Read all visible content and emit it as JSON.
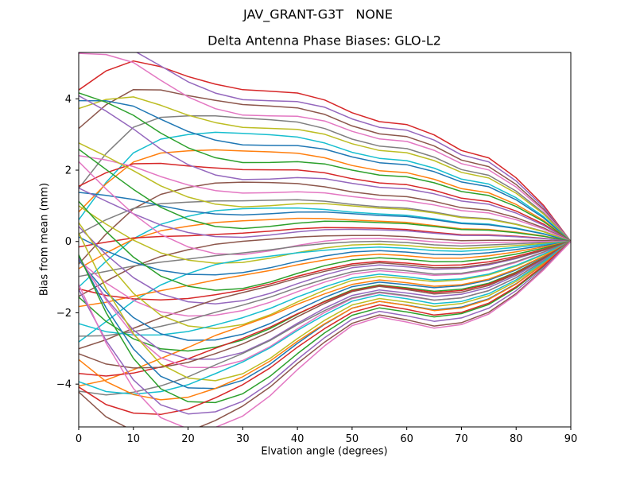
{
  "chart_data": {
    "type": "line",
    "suptitle": "JAV_GRANT-G3T   NONE",
    "title": "Delta Antenna Phase Biases: GLO-L2",
    "xlabel": "Elvation angle (degrees)",
    "ylabel": "Bias from mean (mm)",
    "xlim": [
      0,
      90
    ],
    "ylim": [
      -5.2,
      5.3
    ],
    "x_ticks": [
      0,
      10,
      20,
      30,
      40,
      50,
      60,
      70,
      80,
      90
    ],
    "y_ticks": [
      -4,
      -2,
      0,
      2,
      4
    ],
    "grid": false,
    "legend": "none",
    "series_count": 54,
    "color_cycle": [
      "#1f77b4",
      "#ff7f0e",
      "#2ca02c",
      "#d62728",
      "#9467bd",
      "#8c564b",
      "#e377c2",
      "#7f7f7f",
      "#bcbd22",
      "#17becf"
    ],
    "x": [
      0,
      5,
      10,
      15,
      20,
      25,
      30,
      35,
      40,
      45,
      50,
      55,
      60,
      65,
      70,
      75,
      80,
      85,
      90
    ],
    "series_model": "y[i] = a*basis_hump[i] + b*basis_valley[i] + c*basis_left[i]; all curves converge to 0 mm at 90 deg",
    "basis_hump": [
      1.12,
      1.22,
      1.26,
      1.2,
      1.12,
      1.06,
      1.02,
      1.01,
      1.0,
      0.955,
      0.87,
      0.81,
      0.79,
      0.72,
      0.615,
      0.565,
      0.43,
      0.245,
      0
    ],
    "basis_valley": [
      -0.64,
      -0.82,
      -0.94,
      -1.0,
      -1.0,
      -0.955,
      -0.885,
      -0.785,
      -0.66,
      -0.545,
      -0.445,
      -0.4,
      -0.425,
      -0.455,
      -0.435,
      -0.38,
      -0.28,
      -0.15,
      0
    ],
    "basis_left": [
      1.0,
      0.7,
      0.42,
      0.2,
      0.06,
      -0.03,
      -0.06,
      -0.05,
      -0.03,
      -0.01,
      0,
      0,
      0,
      0,
      0,
      0,
      0,
      0,
      0
    ],
    "series": [
      {
        "color": "#d62728",
        "a": 4.15,
        "b": 0.0,
        "c": -0.4
      },
      {
        "color": "#9467bd",
        "a": 3.95,
        "b": 0.0,
        "c": 0.9
      },
      {
        "color": "#8c564b",
        "a": 3.75,
        "b": 0.05,
        "c": -1.0
      },
      {
        "color": "#e377c2",
        "a": 3.55,
        "b": 0.0,
        "c": 1.3
      },
      {
        "color": "#7f7f7f",
        "a": 3.35,
        "b": 0.1,
        "c": -2.2
      },
      {
        "color": "#bcbd22",
        "a": 3.15,
        "b": 0.0,
        "c": 0.2
      },
      {
        "color": "#17becf",
        "a": 2.95,
        "b": 0.15,
        "c": -2.6
      },
      {
        "color": "#1f77b4",
        "a": 2.75,
        "b": 0.05,
        "c": 0.9
      },
      {
        "color": "#ff7f0e",
        "a": 2.55,
        "b": 0.2,
        "c": -1.9
      },
      {
        "color": "#2ca02c",
        "a": 2.35,
        "b": 0.1,
        "c": 1.6
      },
      {
        "color": "#d62728",
        "a": 2.15,
        "b": 0.25,
        "c": -0.7
      },
      {
        "color": "#9467bd",
        "a": 1.95,
        "b": 0.15,
        "c": 2.0
      },
      {
        "color": "#8c564b",
        "a": 1.75,
        "b": 0.3,
        "c": -2.4
      },
      {
        "color": "#e377c2",
        "a": 1.55,
        "b": 0.2,
        "c": 0.8
      },
      {
        "color": "#7f7f7f",
        "a": 1.4,
        "b": 0.4,
        "c": -1.1
      },
      {
        "color": "#bcbd22",
        "a": 1.3,
        "b": 0.3,
        "c": 1.5
      },
      {
        "color": "#17becf",
        "a": 1.2,
        "b": 0.5,
        "c": -2.3
      },
      {
        "color": "#1f77b4",
        "a": 1.1,
        "b": 0.4,
        "c": 0.4
      },
      {
        "color": "#ff7f0e",
        "a": 1.0,
        "b": 0.6,
        "c": -1.5
      },
      {
        "color": "#2ca02c",
        "a": 0.9,
        "b": 0.5,
        "c": 1.9
      },
      {
        "color": "#d62728",
        "a": 0.8,
        "b": 0.7,
        "c": -0.6
      },
      {
        "color": "#9467bd",
        "a": 0.7,
        "b": 0.6,
        "c": 1.1
      },
      {
        "color": "#8c564b",
        "a": 0.6,
        "b": 0.8,
        "c": -1.7
      },
      {
        "color": "#e377c2",
        "a": 0.55,
        "b": 0.9,
        "c": 2.2
      },
      {
        "color": "#7f7f7f",
        "a": 0.5,
        "b": 1.0,
        "c": -0.9
      },
      {
        "color": "#bcbd22",
        "a": 0.45,
        "b": 1.1,
        "c": 1.2
      },
      {
        "color": "#17becf",
        "a": 0.4,
        "b": 1.2,
        "c": -2.5
      },
      {
        "color": "#1f77b4",
        "a": 0.35,
        "b": 1.35,
        "c": 0.6
      },
      {
        "color": "#ff7f0e",
        "a": 0.3,
        "b": 1.5,
        "c": -1.2
      },
      {
        "color": "#2ca02c",
        "a": 0.25,
        "b": 1.65,
        "c": 1.9
      },
      {
        "color": "#d62728",
        "a": 0.2,
        "b": 1.8,
        "c": -0.4
      },
      {
        "color": "#9467bd",
        "a": 0.15,
        "b": 1.95,
        "c": 1.5
      },
      {
        "color": "#8c564b",
        "a": 0.3,
        "b": 2.1,
        "c": -2.0
      },
      {
        "color": "#e377c2",
        "a": 0.1,
        "b": 2.25,
        "c": 0.8
      },
      {
        "color": "#7f7f7f",
        "a": 0.25,
        "b": 2.4,
        "c": -1.4
      },
      {
        "color": "#bcbd22",
        "a": 0.05,
        "b": 2.55,
        "c": 2.1
      },
      {
        "color": "#17becf",
        "a": 0.2,
        "b": 2.7,
        "c": -0.8
      },
      {
        "color": "#1f77b4",
        "a": 0.0,
        "b": 2.85,
        "c": 1.3
      },
      {
        "color": "#ff7f0e",
        "a": 0.15,
        "b": 3.0,
        "c": -2.3
      },
      {
        "color": "#2ca02c",
        "a": 0.05,
        "b": 3.15,
        "c": 0.4
      },
      {
        "color": "#d62728",
        "a": 0.1,
        "b": 3.3,
        "c": -1.7
      },
      {
        "color": "#9467bd",
        "a": 0.0,
        "b": 3.4,
        "c": 1.7
      },
      {
        "color": "#8c564b",
        "a": 0.2,
        "b": 3.55,
        "c": -1.1
      },
      {
        "color": "#e377c2",
        "a": 0.05,
        "b": 3.7,
        "c": 1.9
      },
      {
        "color": "#7f7f7f",
        "a": 0.15,
        "b": 3.85,
        "c": -1.9
      },
      {
        "color": "#bcbd22",
        "a": 0.0,
        "b": 4.0,
        "c": 2.8
      },
      {
        "color": "#17becf",
        "a": 0.2,
        "b": 4.15,
        "c": -1.5
      },
      {
        "color": "#1f77b4",
        "a": 0.05,
        "b": 4.3,
        "c": 2.3
      },
      {
        "color": "#ff7f0e",
        "a": 0.15,
        "b": 4.5,
        "c": -0.6
      },
      {
        "color": "#2ca02c",
        "a": 0.0,
        "b": 4.65,
        "c": 2.6
      },
      {
        "color": "#d62728",
        "a": 0.2,
        "b": 4.85,
        "c": -1.2
      },
      {
        "color": "#9467bd",
        "a": 0.05,
        "b": 5.0,
        "c": 1.8
      },
      {
        "color": "#8c564b",
        "a": 0.15,
        "b": 5.45,
        "c": -0.9
      },
      {
        "color": "#e377c2",
        "a": 0.1,
        "b": 5.5,
        "c": 2.2
      }
    ]
  },
  "style": {
    "line_width": 1.5,
    "axes_color": "#000000",
    "background": "#ffffff"
  }
}
